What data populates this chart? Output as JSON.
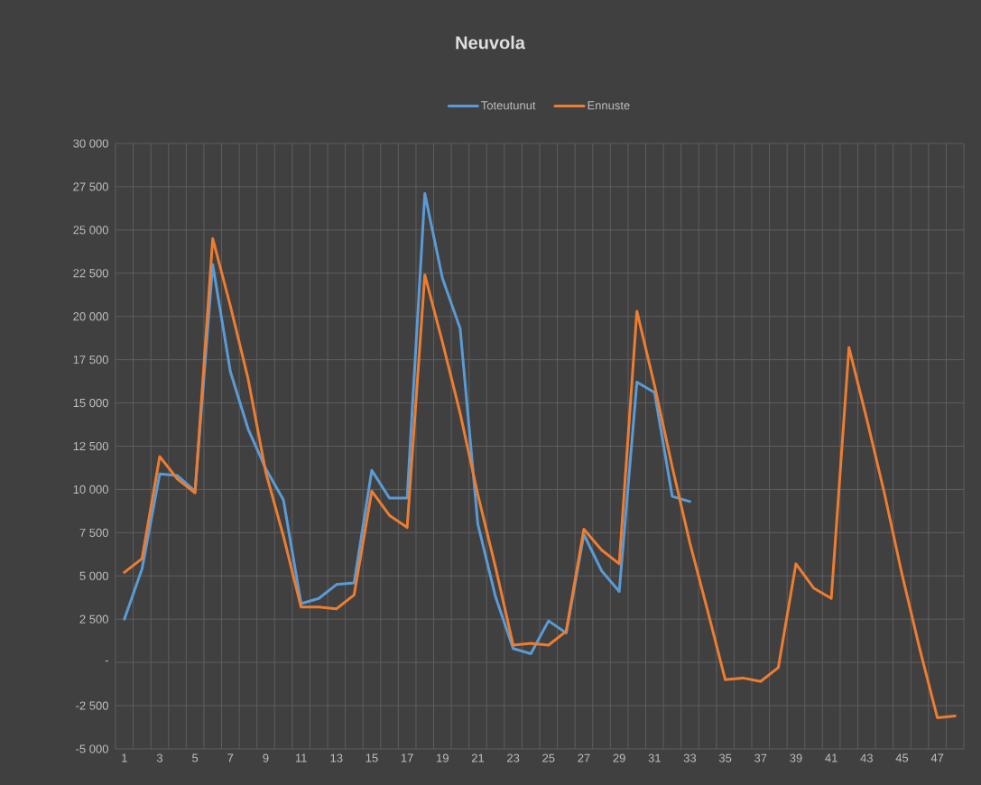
{
  "chart_data": {
    "type": "line",
    "title": "Neuvola",
    "categories": [
      "1",
      null,
      "3",
      null,
      "5",
      null,
      "7",
      null,
      "9",
      null,
      "11",
      null,
      "13",
      null,
      "15",
      null,
      "17",
      null,
      "19",
      null,
      "21",
      null,
      "23",
      null,
      "25",
      null,
      "27",
      null,
      "29",
      null,
      "31",
      null,
      "33",
      null,
      "35",
      null,
      "37",
      null,
      "39",
      null,
      "41",
      null,
      "43",
      null,
      "45",
      null,
      "47",
      null
    ],
    "series": [
      {
        "name": "Toteutunut",
        "color": "#5b9bd5",
        "values": [
          2500,
          5400,
          10900,
          10800,
          9900,
          23000,
          16800,
          13500,
          11200,
          9400,
          3400,
          3700,
          4500,
          4600,
          11100,
          9500,
          9500,
          27100,
          22200,
          19300,
          8000,
          3800,
          800,
          500,
          2400,
          1700,
          7400,
          5300,
          4100,
          16200,
          15600,
          9600,
          9300,
          null,
          null,
          null,
          null,
          null,
          null,
          null,
          null,
          null,
          null,
          null,
          null,
          null,
          null,
          null
        ]
      },
      {
        "name": "Ennuste",
        "color": "#ed7d31",
        "values": [
          5200,
          6000,
          11900,
          10600,
          9800,
          24500,
          20600,
          16400,
          11000,
          7300,
          3200,
          3200,
          3100,
          3900,
          9900,
          8500,
          7800,
          22400,
          18500,
          14400,
          9700,
          5500,
          1000,
          1100,
          1000,
          1800,
          7700,
          6500,
          5700,
          20300,
          16000,
          11300,
          6900,
          3000,
          -1000,
          -900,
          -1100,
          -300,
          5700,
          4300,
          3700,
          18200,
          14100,
          9800,
          5100,
          800,
          -3200,
          -3100
        ]
      }
    ],
    "ylim": [
      -5000,
      30000
    ],
    "yticks": [
      {
        "value": -5000,
        "label": "-5 000"
      },
      {
        "value": -2500,
        "label": "-2 500"
      },
      {
        "value": 0,
        "label": "-"
      },
      {
        "value": 2500,
        "label": "2 500"
      },
      {
        "value": 5000,
        "label": "5 000"
      },
      {
        "value": 7500,
        "label": "7 500"
      },
      {
        "value": 10000,
        "label": "10 000"
      },
      {
        "value": 12500,
        "label": "12 500"
      },
      {
        "value": 15000,
        "label": "15 000"
      },
      {
        "value": 17500,
        "label": "17 500"
      },
      {
        "value": 20000,
        "label": "20 000"
      },
      {
        "value": 22500,
        "label": "22 500"
      },
      {
        "value": 25000,
        "label": "25 000"
      },
      {
        "value": 27500,
        "label": "27 500"
      },
      {
        "value": 30000,
        "label": "30 000"
      }
    ],
    "grid": true,
    "legend": "top",
    "marker": "none",
    "line_style": "solid"
  }
}
